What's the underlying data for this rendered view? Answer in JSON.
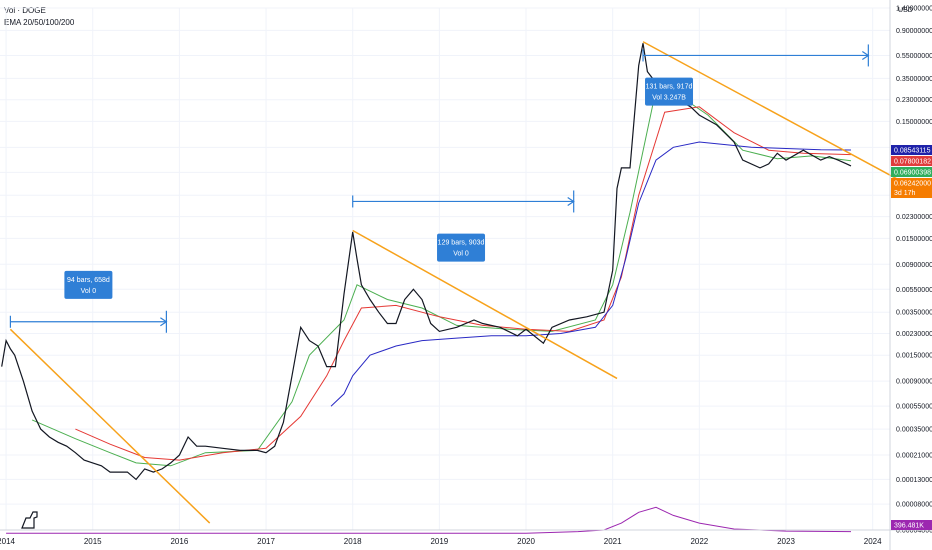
{
  "legend": {
    "line1": "Vol · DOGE",
    "line2": "EMA 20/50/100/200"
  },
  "currency": "USD",
  "chart_data": {
    "type": "line",
    "symbol": "DOGE",
    "y_scale": "log",
    "ylim": [
      4.8e-05,
      1.4
    ],
    "xlim": [
      2013.93,
      2024.2
    ],
    "x_ticks": [
      "2014",
      "2015",
      "2016",
      "2017",
      "2018",
      "2019",
      "2020",
      "2021",
      "2022",
      "2023",
      "2024"
    ],
    "y_ticks": [
      "1.40000000",
      "0.90000000",
      "0.55000000",
      "0.35000000",
      "0.23000000",
      "0.15000000",
      "0.09000000",
      "0.05500000",
      "0.03500000",
      "0.02300000",
      "0.01500000",
      "0.00900000",
      "0.00550000",
      "0.00350000",
      "0.00230000",
      "0.00150000",
      "0.00090000",
      "0.00055000",
      "0.00035000",
      "0.00021000",
      "0.00013000",
      "0.00008000",
      "0.00004800"
    ],
    "price_series": {
      "x": [
        2013.95,
        2014.0,
        2014.05,
        2014.1,
        2014.2,
        2014.3,
        2014.4,
        2014.5,
        2014.6,
        2014.7,
        2014.8,
        2014.9,
        2015.0,
        2015.1,
        2015.2,
        2015.3,
        2015.4,
        2015.5,
        2015.6,
        2015.7,
        2015.8,
        2015.9,
        2016.0,
        2016.1,
        2016.2,
        2016.3,
        2016.5,
        2016.7,
        2016.9,
        2017.0,
        2017.1,
        2017.2,
        2017.3,
        2017.4,
        2017.5,
        2017.6,
        2017.7,
        2017.8,
        2017.9,
        2018.0,
        2018.05,
        2018.1,
        2018.2,
        2018.3,
        2018.4,
        2018.5,
        2018.6,
        2018.7,
        2018.8,
        2018.9,
        2019.0,
        2019.2,
        2019.4,
        2019.5,
        2019.7,
        2019.9,
        2020.0,
        2020.2,
        2020.3,
        2020.5,
        2020.7,
        2020.9,
        2021.0,
        2021.05,
        2021.1,
        2021.2,
        2021.3,
        2021.35,
        2021.4,
        2021.5,
        2021.6,
        2021.7,
        2021.8,
        2021.9,
        2022.0,
        2022.2,
        2022.4,
        2022.5,
        2022.7,
        2022.8,
        2022.9,
        2023.0,
        2023.2,
        2023.4,
        2023.5,
        2023.6,
        2023.7,
        2023.75
      ],
      "y": [
        0.0012,
        0.002,
        0.0017,
        0.0015,
        0.0009,
        0.0005,
        0.00035,
        0.0003,
        0.00027,
        0.00025,
        0.00022,
        0.00019,
        0.00018,
        0.00017,
        0.00015,
        0.00015,
        0.00015,
        0.00013,
        0.00016,
        0.00015,
        0.00016,
        0.00018,
        0.00021,
        0.0003,
        0.00025,
        0.00025,
        0.00024,
        0.00023,
        0.00023,
        0.00022,
        0.00025,
        0.0004,
        0.001,
        0.0026,
        0.002,
        0.0018,
        0.0012,
        0.0012,
        0.005,
        0.017,
        0.01,
        0.006,
        0.0045,
        0.0035,
        0.0028,
        0.0028,
        0.0045,
        0.0055,
        0.0045,
        0.0028,
        0.0024,
        0.0026,
        0.003,
        0.0028,
        0.0026,
        0.0022,
        0.0025,
        0.0019,
        0.0026,
        0.003,
        0.0032,
        0.0035,
        0.008,
        0.04,
        0.06,
        0.06,
        0.45,
        0.7,
        0.4,
        0.32,
        0.25,
        0.27,
        0.22,
        0.2,
        0.17,
        0.14,
        0.1,
        0.07,
        0.06,
        0.065,
        0.08,
        0.07,
        0.085,
        0.07,
        0.075,
        0.07,
        0.065,
        0.0624
      ]
    },
    "ema_series": [
      {
        "x": [
          2014.3,
          2014.8,
          2015.2,
          2015.5,
          2015.9,
          2016.3,
          2016.9,
          2017.3,
          2017.5,
          2017.9,
          2018.05,
          2018.4,
          2018.8,
          2019.2,
          2019.8,
          2020.3,
          2020.8,
          2021.0,
          2021.2,
          2021.5,
          2021.8,
          2022.1,
          2022.5,
          2022.9,
          2023.3,
          2023.75
        ],
        "y": [
          0.00042,
          0.00029,
          0.00022,
          0.00018,
          0.00017,
          0.00022,
          0.00023,
          0.0006,
          0.0015,
          0.003,
          0.006,
          0.0045,
          0.0038,
          0.0027,
          0.0025,
          0.0024,
          0.003,
          0.006,
          0.025,
          0.28,
          0.24,
          0.17,
          0.085,
          0.072,
          0.076,
          0.069
        ]
      },
      {
        "x": [
          2014.8,
          2015.2,
          2015.6,
          2016.0,
          2016.5,
          2017.0,
          2017.4,
          2017.7,
          2017.9,
          2018.1,
          2018.5,
          2019.0,
          2019.5,
          2020.0,
          2020.5,
          2020.9,
          2021.1,
          2021.3,
          2021.6,
          2022.0,
          2022.4,
          2022.8,
          2023.2,
          2023.75
        ],
        "y": [
          0.00035,
          0.00026,
          0.0002,
          0.00019,
          0.00022,
          0.00024,
          0.00045,
          0.001,
          0.002,
          0.0038,
          0.004,
          0.0032,
          0.0027,
          0.0025,
          0.0024,
          0.003,
          0.007,
          0.035,
          0.18,
          0.2,
          0.12,
          0.085,
          0.08,
          0.078
        ]
      },
      {
        "x": [
          2017.75,
          2017.9,
          2018.0,
          2018.2,
          2018.5,
          2018.8,
          2019.2,
          2019.6,
          2020.0,
          2020.4,
          2020.8,
          2021.0,
          2021.15,
          2021.3,
          2021.5,
          2021.7,
          2022.0,
          2022.3,
          2022.6,
          2023.0,
          2023.4,
          2023.75
        ],
        "y": [
          0.00055,
          0.0007,
          0.001,
          0.0015,
          0.0018,
          0.002,
          0.0021,
          0.0022,
          0.0022,
          0.0023,
          0.0026,
          0.004,
          0.01,
          0.03,
          0.07,
          0.09,
          0.1,
          0.095,
          0.09,
          0.088,
          0.086,
          0.0854
        ]
      }
    ],
    "volume_series": {
      "x": [
        2014.0,
        2016.0,
        2018.0,
        2020.0,
        2020.6,
        2020.9,
        2021.1,
        2021.3,
        2021.5,
        2021.7,
        2022.0,
        2022.4,
        2023.0,
        2023.75
      ],
      "y": [
        4.5e-05,
        4.5e-05,
        4.5e-05,
        4.5e-05,
        4.65e-05,
        4.8e-05,
        5.5e-05,
        6.8e-05,
        7.5e-05,
        6.4e-05,
        5.5e-05,
        4.9e-05,
        4.7e-05,
        4.65e-05
      ]
    },
    "trend_lines": [
      {
        "x": [
          2014.05,
          2016.35
        ],
        "y": [
          0.0025,
          5.5e-05
        ]
      },
      {
        "x": [
          2018.0,
          2021.05
        ],
        "y": [
          0.0175,
          0.00095
        ]
      },
      {
        "x": [
          2021.35,
          2024.6
        ],
        "y": [
          0.72,
          0.036
        ]
      }
    ],
    "range_arrows": [
      {
        "x": [
          2014.05,
          2015.85
        ],
        "y": 0.0029
      },
      {
        "x": [
          2018.0,
          2020.55
        ],
        "y": 0.031
      },
      {
        "x": [
          2021.35,
          2023.95
        ],
        "y": 0.55
      }
    ],
    "callouts": [
      {
        "line1": "94 bars, 658d",
        "line2": "Vol 0",
        "x": 2014.95,
        "y": 0.006
      },
      {
        "line1": "129 bars, 903d",
        "line2": "Vol 0",
        "x": 2019.25,
        "y": 0.0125
      },
      {
        "line1": "131 bars, 917d",
        "line2": "Vol 3.247B",
        "x": 2021.65,
        "y": 0.27
      }
    ],
    "price_badges": [
      {
        "label": "0.08543115",
        "color": "#1e22aa",
        "y": 0.0854
      },
      {
        "label": "0.07800182",
        "color": "#e03c3c",
        "y": 0.078
      },
      {
        "label": "0.06900398",
        "color": "#2fae5d",
        "y": 0.069
      },
      {
        "label": "0.06242000",
        "color": "#f57c00",
        "y": 0.0624,
        "sub": "3d 17h"
      }
    ],
    "volume_badge": {
      "label": "396.481K",
      "color": "#9c27b0"
    }
  }
}
